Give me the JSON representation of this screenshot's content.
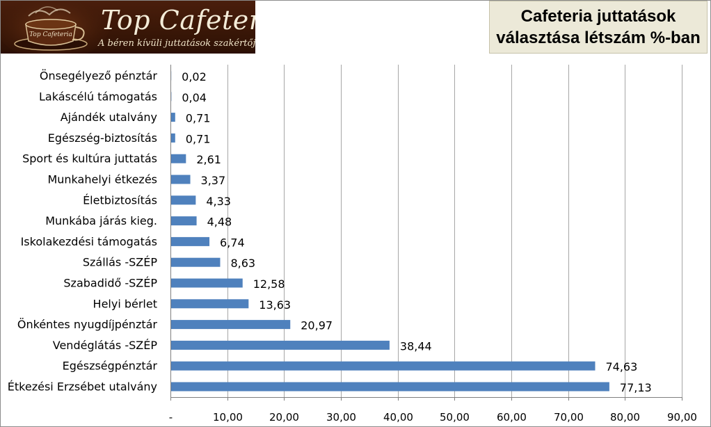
{
  "logo": {
    "title": "Top Cafeteria",
    "subtitle": "A béren kívüli juttatások szakértője",
    "cup_text": "Top Cafeteria"
  },
  "chart_title_lines": [
    "Cafeteria juttatások",
    "választása létszám %-ban"
  ],
  "colors": {
    "bar": "#4f81bd",
    "grid": "#a6a6a6",
    "title_box": "#ece9d8",
    "logo_bg": "#3a1707"
  },
  "chart_data": {
    "type": "bar",
    "orientation": "horizontal",
    "title": "Cafeteria juttatások választása létszám %-ban",
    "categories": [
      "Önsegélyező pénztár",
      "Lakáscélú támogatás",
      "Ajándék utalvány",
      "Egészség-biztosítás",
      "Sport és kultúra juttatás",
      "Munkahelyi étkezés",
      "Életbiztosítás",
      "Munkába járás kieg.",
      "Iskolakezdési támogatás",
      "Szállás -SZÉP",
      "Szabadidő -SZÉP",
      "Helyi bérlet",
      "Önkéntes nyugdíjpénztár",
      "Vendéglátás -SZÉP",
      "Egészségpénztár",
      "Étkezési Erzsébet utalvány"
    ],
    "values": [
      0.02,
      0.04,
      0.71,
      0.71,
      2.61,
      3.37,
      4.33,
      4.48,
      6.74,
      8.63,
      12.58,
      13.63,
      20.97,
      38.44,
      74.63,
      77.13
    ],
    "value_labels": [
      "0,02",
      "0,04",
      "0,71",
      "0,71",
      "2,61",
      "3,37",
      "4,33",
      "4,48",
      "6,74",
      "8,63",
      "12,58",
      "13,63",
      "20,97",
      "38,44",
      "74,63",
      "77,13"
    ],
    "xlim": [
      0,
      90
    ],
    "x_ticks": [
      0,
      10,
      20,
      30,
      40,
      50,
      60,
      70,
      80,
      90
    ],
    "x_tick_labels": [
      "-",
      "10,00",
      "20,00",
      "30,00",
      "40,00",
      "50,00",
      "60,00",
      "70,00",
      "80,00",
      "90,00"
    ],
    "grid": true,
    "xlabel": "",
    "ylabel": ""
  }
}
